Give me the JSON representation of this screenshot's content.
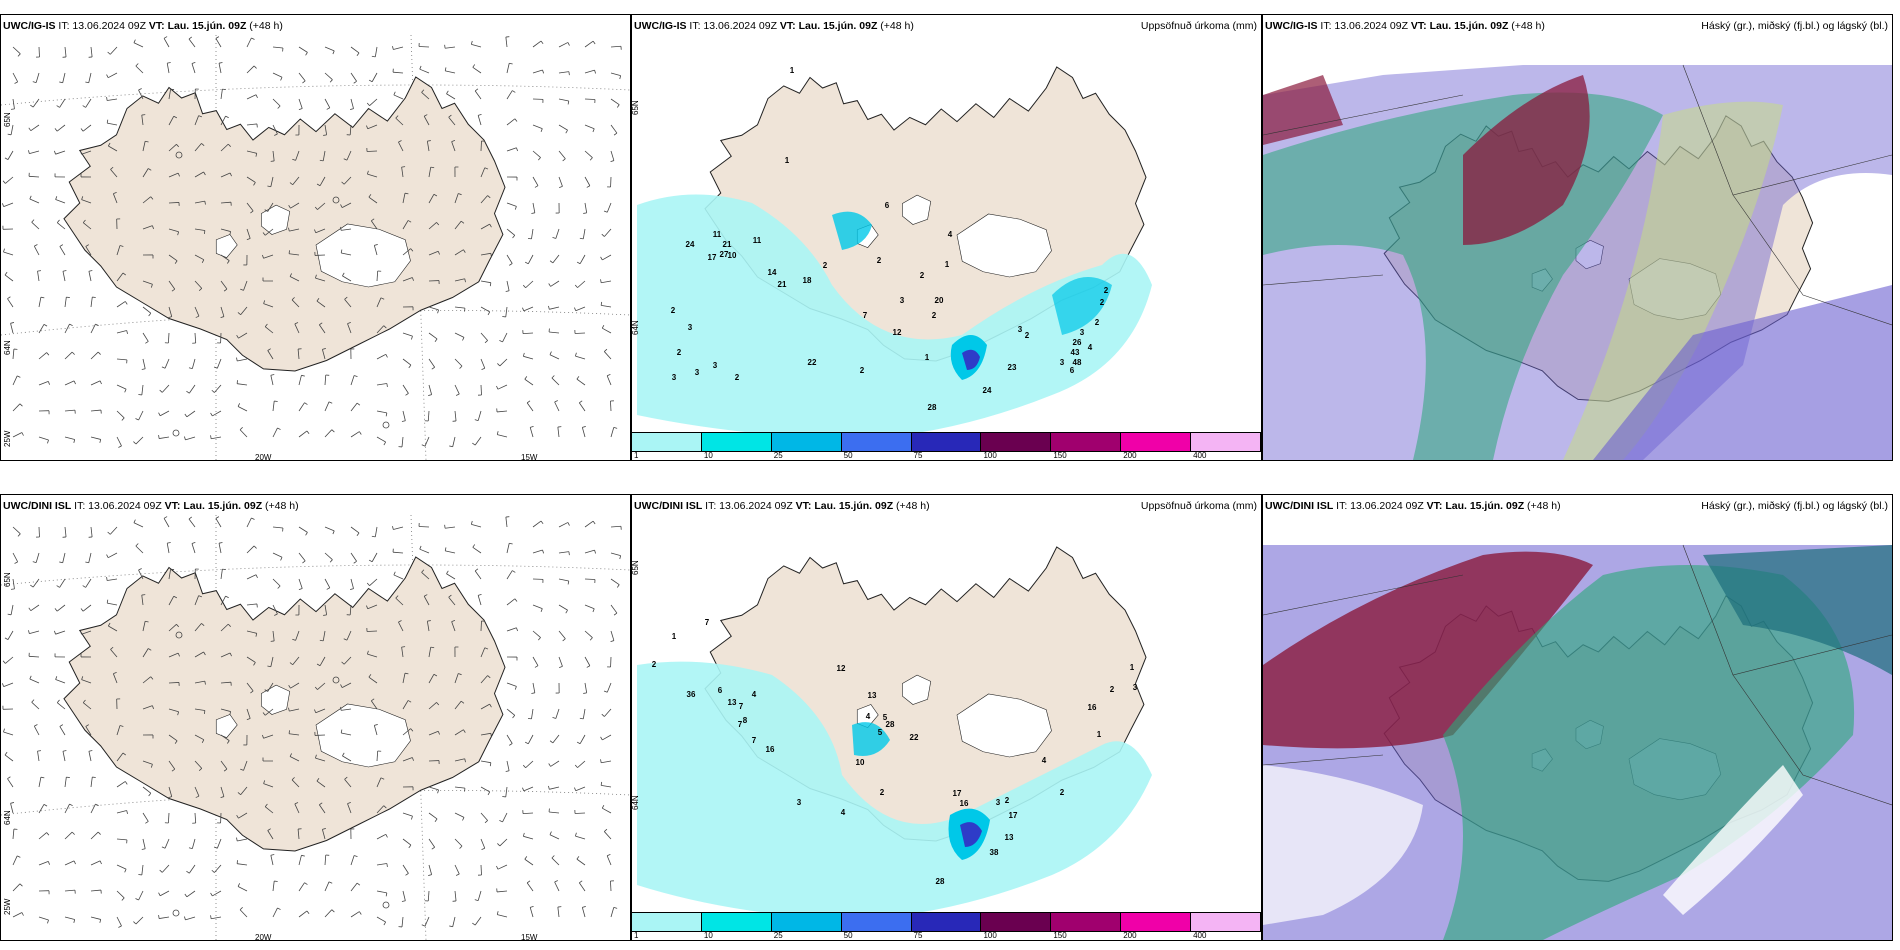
{
  "rows": [
    {
      "id": "top",
      "wind": {
        "model": "UWC/IG-IS",
        "it": "IT: 13.06.2024 09Z",
        "vt": "VT: Lau. 15.jún. 09Z",
        "lead": "(+48 h)",
        "right": ""
      },
      "precip": {
        "model": "UWC/IG-IS",
        "it": "IT: 13.06.2024 09Z",
        "vt": "VT: Lau. 15.jún. 09Z",
        "lead": "(+48 h)",
        "right": "Uppsöfnuð úrkoma (mm)",
        "labels": [
          "1",
          "1",
          "6",
          "4",
          "1",
          "2",
          "20",
          "2",
          "1",
          "3",
          "2",
          "24",
          "11",
          "17",
          "21",
          "11",
          "10",
          "27",
          "14",
          "18",
          "21",
          "7",
          "12",
          "2",
          "2",
          "3",
          "2",
          "3",
          "3",
          "3",
          "2",
          "22",
          "2",
          "23",
          "24",
          "28",
          "3",
          "2",
          "3",
          "3",
          "26",
          "43",
          "48",
          "6",
          "4",
          "2",
          "2",
          "2"
        ]
      },
      "cloud": {
        "model": "UWC/IG-IS",
        "it": "IT: 13.06.2024 09Z",
        "vt": "VT: Lau. 15.jún. 09Z",
        "lead": "(+48 h)",
        "right": "Háský (gr.), miðský (fj.bl.) og lágský (bl.)"
      }
    },
    {
      "id": "bottom",
      "wind": {
        "model": "UWC/DINI ISL",
        "it": "IT: 13.06.2024 09Z",
        "vt": "VT: Lau. 15.jún. 09Z",
        "lead": "(+48 h)",
        "right": ""
      },
      "precip": {
        "model": "UWC/DINI ISL",
        "it": "IT: 13.06.2024 09Z",
        "vt": "VT: Lau. 15.jún. 09Z",
        "lead": "(+48 h)",
        "right": "Uppsöfnuð úrkoma (mm)",
        "labels": [
          "1",
          "7",
          "2",
          "36",
          "6",
          "4",
          "13",
          "7",
          "8",
          "7",
          "7",
          "16",
          "3",
          "12",
          "13",
          "22",
          "28",
          "5",
          "4",
          "5",
          "10",
          "2",
          "4",
          "17",
          "16",
          "3",
          "2",
          "38",
          "13",
          "17",
          "4",
          "1",
          "2",
          "1",
          "3",
          "16",
          "2",
          "28"
        ]
      },
      "cloud": {
        "model": "UWC/DINI ISL",
        "it": "IT: 13.06.2024 09Z",
        "vt": "VT: Lau. 15.jún. 09Z",
        "lead": "(+48 h)",
        "right": "Háský (gr.), miðský (fj.bl.) og lágský (bl.)"
      }
    }
  ],
  "axes": {
    "lat_top": "65N",
    "lat_mid": "64N",
    "lon_left": "25W",
    "lon_a": "20W",
    "lon_b": "15W"
  },
  "legend": {
    "labels": [
      "1",
      "10",
      "25",
      "50",
      "75",
      "100",
      "150",
      "200",
      "400"
    ],
    "colors": [
      "#aaf5f5",
      "#00e5e5",
      "#00b7e6",
      "#3c6ef0",
      "#2828b8",
      "#6a0050",
      "#a0006e",
      "#f000a8",
      "#f4b4f4"
    ]
  },
  "colors": {
    "land": "#efe4d8",
    "coast": "#222222",
    "precip_light": "#aaf5f5",
    "precip_mid": "#00c8e8",
    "precip_dark": "#2e3cc8",
    "cloud_blue": "#6a5fd0",
    "cloud_green": "#2aa878",
    "cloud_red": "#8a1a3c"
  }
}
